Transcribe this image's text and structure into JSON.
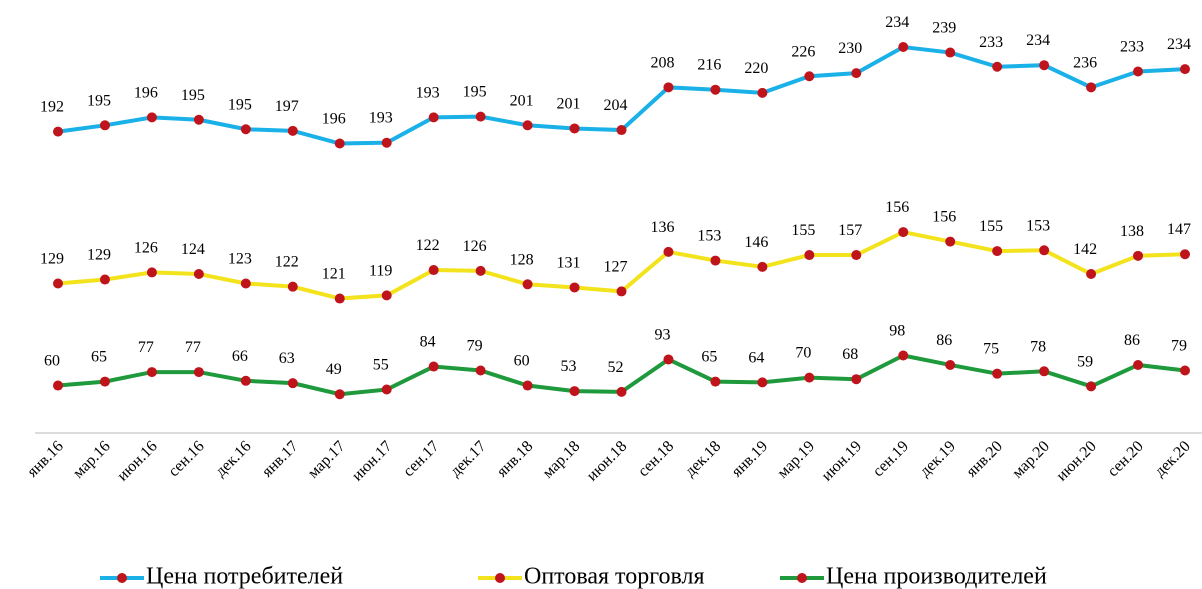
{
  "chart_data": {
    "type": "line",
    "stacked": true,
    "categories": [
      "янв.16",
      "мар.16",
      "июн.16",
      "сен.16",
      "дек.16",
      "янв.17",
      "мар.17",
      "июн.17",
      "сен.17",
      "дек.17",
      "янв.18",
      "мар.18",
      "июн.18",
      "сен.18",
      "дек.18",
      "янв.19",
      "мар.19",
      "июн.19",
      "сен.19",
      "дек.19",
      "янв.20",
      "мар.20",
      "июн.20",
      "сен.20",
      "дек.20"
    ],
    "marker_color": "#c0141c",
    "series": [
      {
        "name": "Цена потребителей",
        "color": "#1ab0e8",
        "values": [
          192,
          195,
          196,
          195,
          195,
          197,
          196,
          193,
          193,
          195,
          201,
          201,
          204,
          208,
          216,
          220,
          226,
          230,
          234,
          239,
          233,
          234,
          236,
          233,
          234
        ]
      },
      {
        "name": "Оптовая торговля",
        "color": "#f2e31c",
        "values": [
          129,
          129,
          126,
          124,
          123,
          122,
          121,
          119,
          122,
          126,
          128,
          131,
          127,
          136,
          153,
          146,
          155,
          157,
          156,
          156,
          155,
          153,
          142,
          138,
          147
        ]
      },
      {
        "name": "Цена производителей",
        "color": "#1e9a3c",
        "values": [
          60,
          65,
          77,
          77,
          66,
          63,
          49,
          55,
          84,
          79,
          60,
          53,
          52,
          93,
          65,
          64,
          70,
          68,
          98,
          86,
          75,
          78,
          59,
          86,
          79
        ]
      }
    ]
  }
}
